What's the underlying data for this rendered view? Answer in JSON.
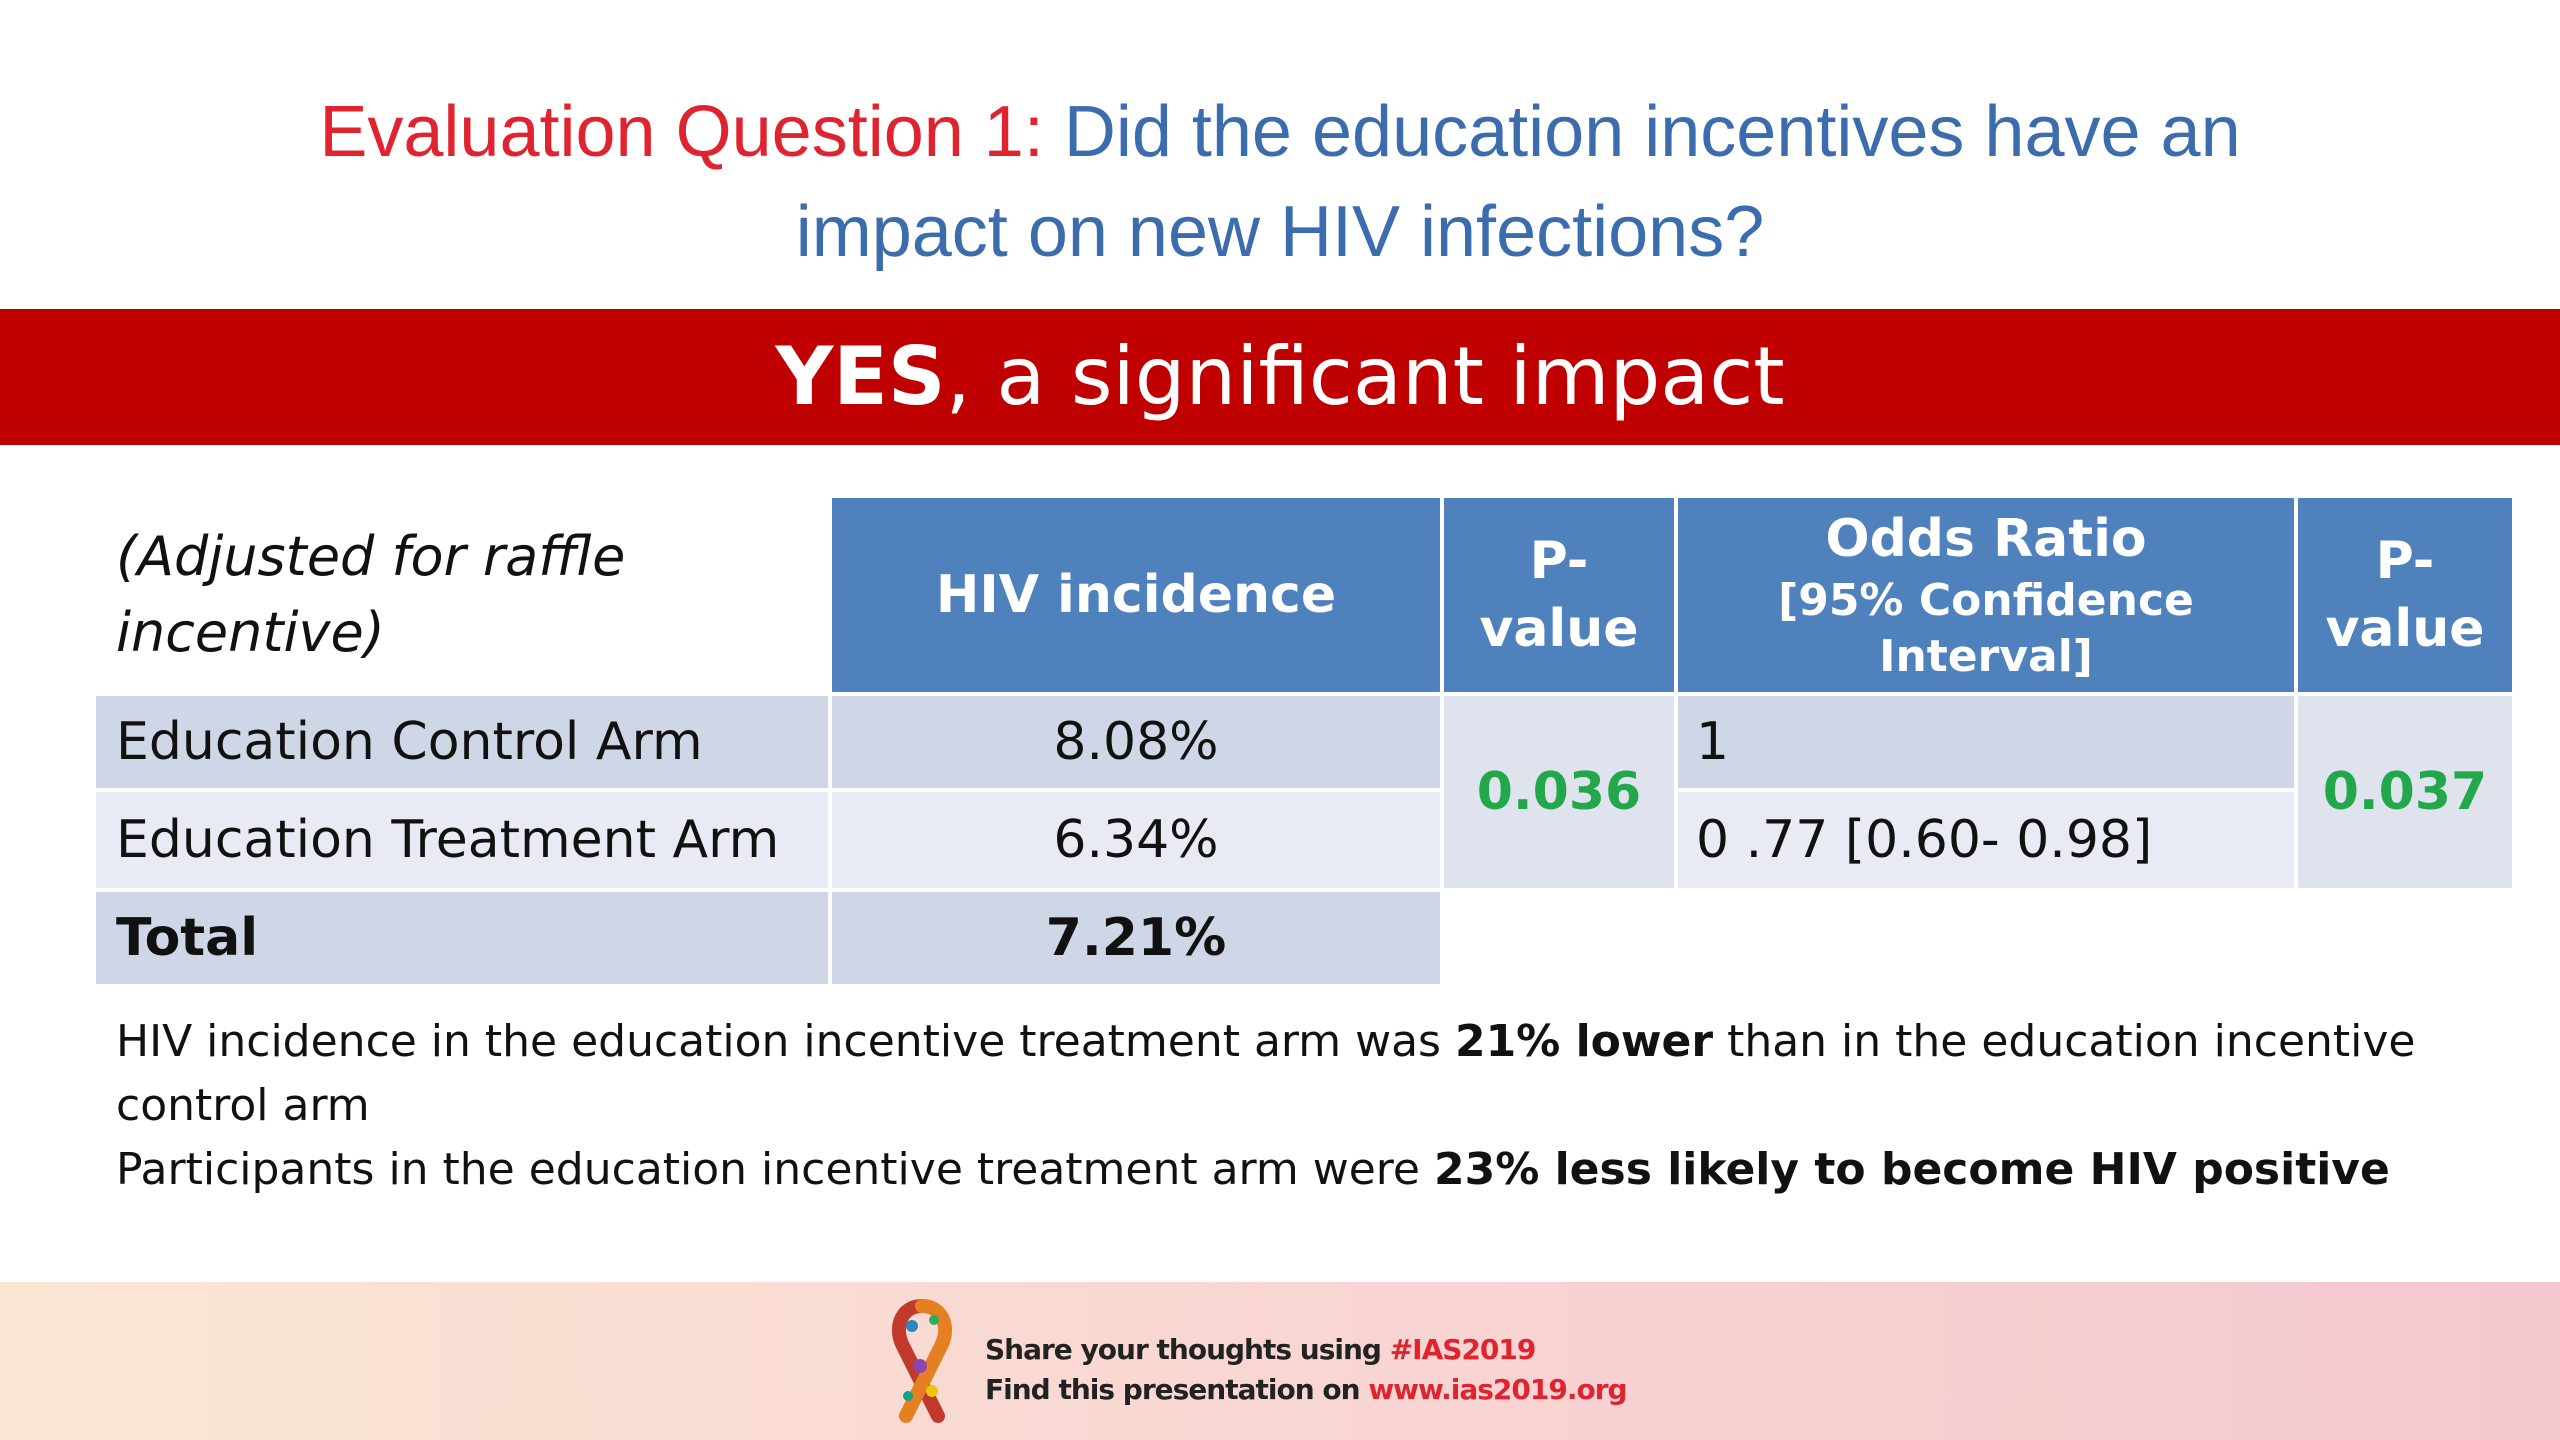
{
  "title": {
    "question": "Evaluation Question 1:",
    "text": "Did the education incentives have an",
    "text_line2": "impact on new HIV infections?"
  },
  "banner": {
    "bold": "YES",
    "rest": ", a significant impact"
  },
  "table": {
    "note_line1": "(Adjusted for raffle",
    "note_line2": "incentive)",
    "headers": {
      "hiv_incidence": "HIV incidence",
      "pvalue1_line1": "P-",
      "pvalue1_line2": "value",
      "odds_ratio": "Odds Ratio",
      "odds_ratio_sub": "[95% Confidence Interval]",
      "pvalue2_line1": "P-",
      "pvalue2_line2": "value"
    },
    "rows": [
      {
        "label": "Education Control Arm",
        "incidence": "8.08%",
        "odds": "1"
      },
      {
        "label": "Education Treatment Arm",
        "incidence": "6.34%",
        "odds": "0 .77 [0.60- 0.98]"
      },
      {
        "label": "Total",
        "incidence": "7.21%"
      }
    ],
    "pvalue1": "0.036",
    "pvalue2": "0.037"
  },
  "notes": {
    "line1_pre": "HIV incidence in the education incentive treatment arm was ",
    "line1_bold": "21% lower",
    "line1_post": " than in the education incentive control arm",
    "line2_pre": "Participants in the education incentive treatment arm were ",
    "line2_bold": "23% less likely to become HIV positive"
  },
  "footer": {
    "share_pre": "Share your thoughts using ",
    "hashtag": "#IAS2019",
    "find_pre": "Find this presentation on ",
    "url": "www.ias2019.org"
  },
  "colors": {
    "title_question": "#e0242f",
    "title_text": "#3b6cae",
    "banner": "#c00000",
    "header": "#4f81bd",
    "pvalue": "#22a84b"
  }
}
